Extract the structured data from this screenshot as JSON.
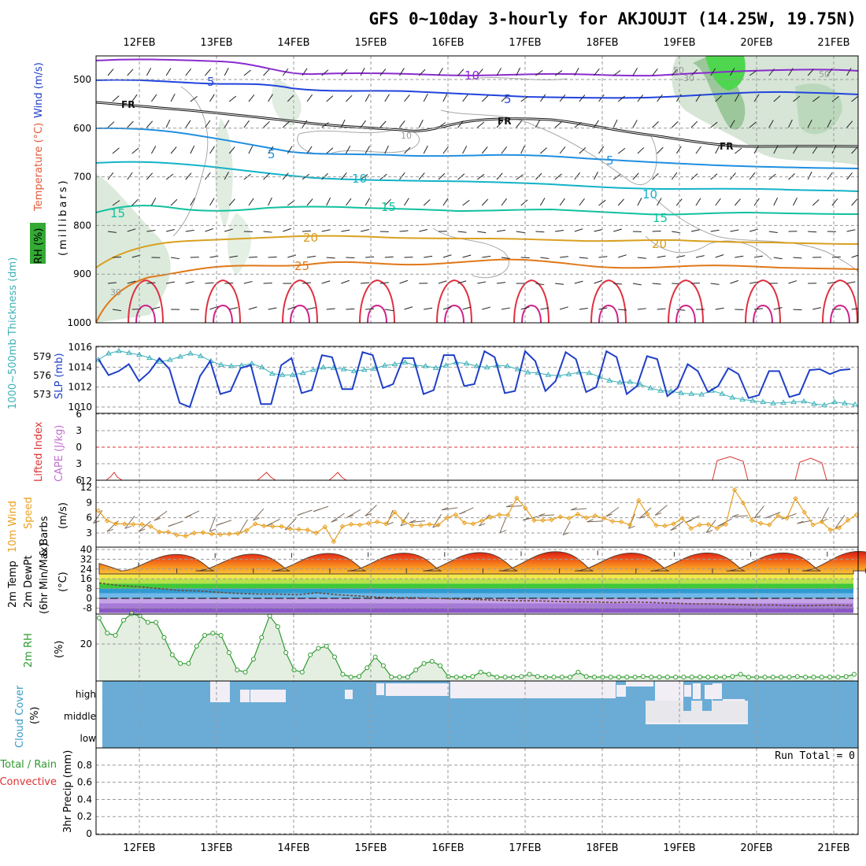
{
  "title": "GFS 0~10day 3-hourly for AKJOUJT (14.25W, 19.75N)",
  "dates": [
    "12FEB",
    "13FEB",
    "14FEB",
    "15FEB",
    "16FEB",
    "17FEB",
    "18FEB",
    "19FEB",
    "20FEB",
    "21FEB"
  ],
  "run_total": "Run Total = 0",
  "colors": {
    "dewpt": "#3cb0b8",
    "slp": "#1f3fc8",
    "wind": "#e8a020",
    "temp_max": "#cc2200",
    "rh": "#2d9a2d",
    "cloud": "#6aacd6",
    "cloud_clear": "#f2eef6",
    "li": "#dd3333",
    "upper_purple": "#8a2bd0",
    "upper_blue": "#2244dd"
  },
  "labels": {
    "upper_rh": "RH (%)",
    "upper_temp": "Temperature (°C)",
    "upper_wind": "Wind (m/s)",
    "upper_millibars": "(millibars)",
    "thickness": "1000~500mb Thickness (dm)",
    "slp": "SLP (mb)",
    "li": "Lifted Index",
    "cape": "CAPE (J/kg)",
    "wind10_a": "10m Wind",
    "wind10_b": "Speed",
    "wind10_c": "& Barbs",
    "wind10_unit": "(m/s)",
    "temp_a": "2m Temp",
    "temp_b": "2m DewPt",
    "temp_c": "(6hr Min/Max)",
    "temp_unit": "(°C)",
    "rh2m": "2m RH",
    "rh_unit": "(%)",
    "cloud": "Cloud Cover",
    "cloud_unit": "(%)",
    "precip_a": "Total / Rain",
    "precip_b": "Convective",
    "precip_c": "3hr Precip (mm)"
  },
  "contour_labels": {
    "fr": "FR",
    "c5": "5",
    "c10": "10",
    "c15": "15",
    "c20": "20",
    "c25": "25",
    "c30": "30",
    "c50": "50"
  },
  "chart_data": [
    {
      "type": "line",
      "panel": "upper-air cross section",
      "ylabel": "millibars",
      "y_ticks": [
        500,
        600,
        700,
        800,
        900,
        1000
      ],
      "isotherm_labels": [
        "-10",
        "-5",
        "FR",
        "5",
        "10",
        "15",
        "20",
        "25"
      ],
      "rh_labels": [
        "10",
        "30",
        "50"
      ]
    },
    {
      "type": "line",
      "panel": "thickness-slp",
      "thickness_ticks": [
        573,
        576,
        579
      ],
      "slp_ticks": [
        1010,
        1012,
        1014,
        1016
      ],
      "slp": [
        1014.8,
        1013.2,
        1013.6,
        1014.3,
        1012.6,
        1013.5,
        1014.9,
        1013.8,
        1010.4,
        1010.0,
        1013.1,
        1014.6,
        1011.3,
        1011.6,
        1013.9,
        1014.2,
        1010.3,
        1010.3,
        1014.2,
        1014.9,
        1011.4,
        1011.7,
        1015.2,
        1015.0,
        1011.8,
        1011.8,
        1015.5,
        1015.2,
        1011.9,
        1012.3,
        1014.9,
        1014.9,
        1011.3,
        1011.7,
        1015.2,
        1015.2,
        1012.1,
        1012.3,
        1015.6,
        1015.0,
        1011.4,
        1011.6,
        1015.6,
        1014.6,
        1011.6,
        1012.6,
        1015.5,
        1014.8,
        1011.5,
        1012.0,
        1015.6,
        1015.0,
        1011.3,
        1012.1,
        1015.1,
        1014.8,
        1011.1,
        1011.9,
        1014.3,
        1013.6,
        1011.5,
        1012.1,
        1013.9,
        1013.3,
        1010.9,
        1011.2,
        1013.6,
        1013.6,
        1011.0,
        1011.3,
        1013.7,
        1013.8,
        1013.3,
        1013.7,
        1013.8
      ],
      "thickness": [
        578.5,
        579.5,
        579.9,
        579.6,
        579.3,
        578.8,
        578.2,
        578.5,
        579.0,
        579.5,
        579.1,
        578.3,
        577.7,
        577.5,
        577.6,
        577.9,
        577.3,
        576.3,
        576.1,
        576.1,
        576.4,
        576.9,
        577.3,
        577.2,
        577.0,
        576.7,
        576.9,
        577.1,
        577.6,
        577.8,
        578.1,
        577.6,
        577.5,
        577.2,
        577.6,
        578.1,
        577.9,
        577.5,
        577.3,
        577.6,
        577.5,
        577.0,
        576.5,
        576.4,
        576.1,
        576.0,
        576.2,
        576.5,
        576.4,
        575.8,
        575.2,
        574.9,
        575.0,
        574.6,
        574.0,
        573.6,
        573.5,
        573.2,
        573.1,
        573.0,
        573.6,
        573.1,
        572.5,
        572.2,
        572.0,
        571.8,
        571.6,
        571.7,
        571.8,
        571.9,
        571.5,
        571.3,
        571.8,
        571.6,
        571.4
      ]
    },
    {
      "type": "line",
      "panel": "lifted index / cape",
      "li_ticks": [
        -6,
        -3,
        0,
        3,
        6
      ],
      "cape_ticks": [
        12
      ]
    },
    {
      "type": "line",
      "panel": "10m wind speed",
      "y_ticks": [
        3,
        6,
        9,
        12
      ],
      "wind": [
        7.4,
        5.4,
        4.8,
        4.8,
        4.7,
        4.7,
        4.3,
        3.2,
        3.2,
        2.6,
        2.4,
        3.0,
        3.1,
        2.8,
        2.7,
        2.8,
        2.9,
        3.5,
        4.8,
        4.4,
        4.3,
        4.3,
        3.8,
        3.7,
        3.6,
        3.0,
        4.2,
        1.3,
        4.3,
        4.7,
        4.6,
        4.9,
        5.2,
        4.8,
        7.1,
        5.3,
        4.5,
        4.5,
        4.7,
        4.6,
        6.0,
        6.6,
        5.0,
        4.8,
        5.4,
        6.1,
        6.6,
        6.5,
        9.9,
        7.9,
        5.5,
        5.5,
        5.6,
        6.2,
        5.9,
        6.7,
        6.0,
        6.4,
        5.9,
        5.3,
        5.2,
        4.6,
        9.4,
        6.7,
        4.5,
        4.4,
        4.8,
        5.9,
        3.9,
        4.6,
        4.7,
        3.9,
        4.7,
        11.5,
        8.9,
        5.5,
        4.9,
        4.6,
        6.4,
        5.9,
        9.8,
        7.1,
        4.6,
        5.2,
        3.6,
        4.0,
        5.5,
        6.6
      ]
    },
    {
      "type": "area",
      "panel": "2m temp / dewpoint",
      "y_ticks": [
        -8,
        0,
        8,
        16,
        24,
        32,
        40
      ],
      "diurnal_max_temp_c": [
        28.6,
        36.0,
        36.2,
        36.8,
        37.0,
        37.5,
        38.2,
        37.1,
        37.2,
        37.2,
        38.5
      ],
      "night_min_temp_c": 22.5,
      "dewpoint_c": [
        12.5,
        10.5,
        9.5,
        8.0,
        6.5,
        6.0,
        5.0,
        4.0,
        3.5,
        3.5,
        3.0,
        4.5,
        3.0,
        2.0,
        1.0,
        0.5,
        0.5,
        0.0,
        -0.5,
        -1.0,
        -1.5,
        -2.0,
        -2.0,
        -2.5,
        -3.0,
        -3.0,
        -3.5,
        -3.0,
        -3.5,
        -4.0,
        -4.5,
        -4.5,
        -5.0,
        -5.5,
        -5.5,
        -6.0,
        -6.0,
        -5.5,
        -6.0
      ]
    },
    {
      "type": "area",
      "panel": "2m RH",
      "y_ticks": [
        20
      ],
      "rh": [
        32,
        25,
        24,
        31,
        34,
        33,
        30,
        30,
        23,
        15,
        11,
        11,
        19,
        24,
        25,
        24,
        16,
        8,
        7,
        13,
        23,
        33,
        28,
        16,
        8,
        7,
        15,
        18,
        19,
        14,
        6,
        4,
        5,
        9,
        14,
        10,
        2,
        0,
        3,
        8,
        11,
        12,
        10,
        5,
        2,
        3,
        5,
        7,
        6,
        4,
        0,
        2,
        5,
        6,
        5,
        2,
        0,
        1,
        4,
        7,
        5,
        2,
        0,
        0,
        2,
        3,
        4,
        5,
        3,
        1,
        0,
        2,
        3,
        4,
        3,
        1,
        1,
        3,
        5,
        6,
        4,
        2,
        0,
        1,
        3,
        4,
        5,
        4,
        2,
        1,
        1,
        3,
        5,
        6
      ]
    },
    {
      "type": "heatmap",
      "panel": "cloud cover",
      "rows": [
        "high",
        "middle",
        "low"
      ]
    },
    {
      "type": "bar",
      "panel": "3hr precip",
      "y_ticks": [
        0,
        0.2,
        0.4,
        0.6,
        0.8
      ],
      "run_total": "Run Total = 0"
    }
  ]
}
